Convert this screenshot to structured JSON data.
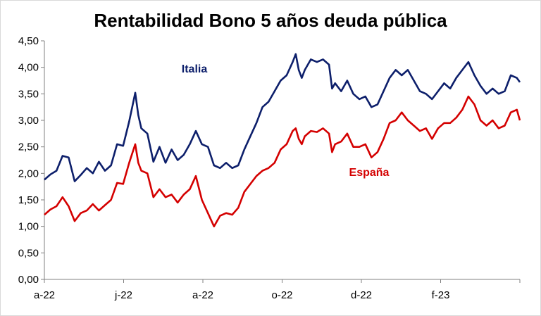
{
  "chart_data": {
    "type": "line",
    "title": "Rentabilidad Bono 5 años deuda pública",
    "xlabel": "",
    "ylabel": "",
    "ylim": [
      0,
      4.5
    ],
    "yticks": [
      "0,00",
      "0,50",
      "1,00",
      "1,50",
      "2,00",
      "2,50",
      "3,00",
      "3,50",
      "4,00",
      "4,50"
    ],
    "xticks": [
      "a-22",
      "j-22",
      "a-22",
      "o-22",
      "d-22",
      "f-23"
    ],
    "grid": false,
    "series": [
      {
        "name": "Italia",
        "color": "#0d1f6b",
        "points": [
          [
            0,
            1.88
          ],
          [
            2,
            1.98
          ],
          [
            4,
            2.05
          ],
          [
            6,
            2.33
          ],
          [
            8,
            2.3
          ],
          [
            10,
            1.85
          ],
          [
            12,
            1.97
          ],
          [
            14,
            2.1
          ],
          [
            16,
            2.0
          ],
          [
            18,
            2.22
          ],
          [
            20,
            2.05
          ],
          [
            22,
            2.15
          ],
          [
            24,
            2.55
          ],
          [
            26,
            2.52
          ],
          [
            28,
            2.98
          ],
          [
            30,
            3.52
          ],
          [
            31,
            3.1
          ],
          [
            32,
            2.85
          ],
          [
            34,
            2.75
          ],
          [
            36,
            2.22
          ],
          [
            38,
            2.5
          ],
          [
            40,
            2.2
          ],
          [
            42,
            2.45
          ],
          [
            44,
            2.25
          ],
          [
            46,
            2.35
          ],
          [
            48,
            2.55
          ],
          [
            50,
            2.8
          ],
          [
            52,
            2.55
          ],
          [
            54,
            2.5
          ],
          [
            56,
            2.15
          ],
          [
            58,
            2.1
          ],
          [
            60,
            2.2
          ],
          [
            62,
            2.1
          ],
          [
            64,
            2.15
          ],
          [
            66,
            2.45
          ],
          [
            68,
            2.7
          ],
          [
            70,
            2.95
          ],
          [
            72,
            3.25
          ],
          [
            74,
            3.35
          ],
          [
            76,
            3.55
          ],
          [
            78,
            3.75
          ],
          [
            80,
            3.85
          ],
          [
            82,
            4.1
          ],
          [
            83,
            4.25
          ],
          [
            84,
            3.95
          ],
          [
            85,
            3.8
          ],
          [
            86,
            3.95
          ],
          [
            88,
            4.15
          ],
          [
            90,
            4.1
          ],
          [
            92,
            4.15
          ],
          [
            94,
            4.05
          ],
          [
            95,
            3.6
          ],
          [
            96,
            3.7
          ],
          [
            98,
            3.55
          ],
          [
            100,
            3.75
          ],
          [
            102,
            3.5
          ],
          [
            104,
            3.4
          ],
          [
            106,
            3.45
          ],
          [
            108,
            3.25
          ],
          [
            110,
            3.3
          ],
          [
            112,
            3.55
          ],
          [
            114,
            3.8
          ],
          [
            116,
            3.95
          ],
          [
            118,
            3.85
          ],
          [
            120,
            3.95
          ],
          [
            122,
            3.75
          ],
          [
            124,
            3.55
          ],
          [
            126,
            3.5
          ],
          [
            128,
            3.4
          ],
          [
            130,
            3.55
          ],
          [
            132,
            3.7
          ],
          [
            134,
            3.6
          ],
          [
            136,
            3.8
          ],
          [
            138,
            3.95
          ],
          [
            140,
            4.1
          ],
          [
            142,
            3.85
          ],
          [
            144,
            3.65
          ],
          [
            146,
            3.5
          ],
          [
            148,
            3.6
          ],
          [
            150,
            3.5
          ],
          [
            152,
            3.55
          ],
          [
            154,
            3.85
          ],
          [
            156,
            3.8
          ],
          [
            157,
            3.72
          ]
        ]
      },
      {
        "name": "España",
        "color": "#d40000",
        "points": [
          [
            0,
            1.22
          ],
          [
            2,
            1.32
          ],
          [
            4,
            1.38
          ],
          [
            6,
            1.55
          ],
          [
            8,
            1.38
          ],
          [
            10,
            1.1
          ],
          [
            12,
            1.25
          ],
          [
            14,
            1.3
          ],
          [
            16,
            1.42
          ],
          [
            18,
            1.3
          ],
          [
            20,
            1.4
          ],
          [
            22,
            1.5
          ],
          [
            24,
            1.82
          ],
          [
            26,
            1.8
          ],
          [
            28,
            2.2
          ],
          [
            30,
            2.55
          ],
          [
            31,
            2.2
          ],
          [
            32,
            2.05
          ],
          [
            34,
            2.0
          ],
          [
            36,
            1.55
          ],
          [
            38,
            1.7
          ],
          [
            40,
            1.55
          ],
          [
            42,
            1.6
          ],
          [
            44,
            1.45
          ],
          [
            46,
            1.6
          ],
          [
            48,
            1.7
          ],
          [
            50,
            1.95
          ],
          [
            52,
            1.5
          ],
          [
            54,
            1.25
          ],
          [
            56,
            1.0
          ],
          [
            58,
            1.2
          ],
          [
            60,
            1.25
          ],
          [
            62,
            1.22
          ],
          [
            64,
            1.35
          ],
          [
            66,
            1.65
          ],
          [
            68,
            1.8
          ],
          [
            70,
            1.95
          ],
          [
            72,
            2.05
          ],
          [
            74,
            2.1
          ],
          [
            76,
            2.2
          ],
          [
            78,
            2.45
          ],
          [
            80,
            2.55
          ],
          [
            82,
            2.8
          ],
          [
            83,
            2.85
          ],
          [
            84,
            2.65
          ],
          [
            85,
            2.55
          ],
          [
            86,
            2.7
          ],
          [
            88,
            2.8
          ],
          [
            90,
            2.78
          ],
          [
            92,
            2.85
          ],
          [
            94,
            2.75
          ],
          [
            95,
            2.4
          ],
          [
            96,
            2.55
          ],
          [
            98,
            2.6
          ],
          [
            100,
            2.75
          ],
          [
            102,
            2.5
          ],
          [
            104,
            2.5
          ],
          [
            106,
            2.55
          ],
          [
            108,
            2.3
          ],
          [
            110,
            2.4
          ],
          [
            112,
            2.65
          ],
          [
            114,
            2.95
          ],
          [
            116,
            3.0
          ],
          [
            118,
            3.15
          ],
          [
            120,
            3.0
          ],
          [
            122,
            2.9
          ],
          [
            124,
            2.8
          ],
          [
            126,
            2.85
          ],
          [
            128,
            2.65
          ],
          [
            130,
            2.85
          ],
          [
            132,
            2.95
          ],
          [
            134,
            2.95
          ],
          [
            136,
            3.05
          ],
          [
            138,
            3.2
          ],
          [
            140,
            3.45
          ],
          [
            142,
            3.3
          ],
          [
            144,
            3.0
          ],
          [
            146,
            2.9
          ],
          [
            148,
            3.0
          ],
          [
            150,
            2.85
          ],
          [
            152,
            2.9
          ],
          [
            154,
            3.15
          ],
          [
            156,
            3.2
          ],
          [
            157,
            3.0
          ]
        ]
      }
    ]
  }
}
